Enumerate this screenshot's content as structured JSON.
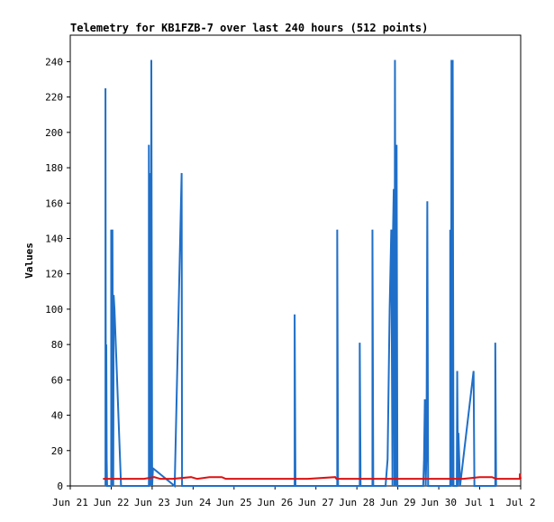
{
  "chart_data": {
    "type": "line",
    "title": "Telemetry for KB1FZB-7 over last 240 hours (512 points)",
    "xlabel": "",
    "ylabel": "Values",
    "ylim": [
      0,
      255
    ],
    "xlim": [
      0,
      11
    ],
    "x_ticks": [
      {
        "label": "Jun 21",
        "x": 0
      },
      {
        "label": "Jun 22",
        "x": 1
      },
      {
        "label": "Jun 23",
        "x": 2
      },
      {
        "label": "Jun 24",
        "x": 3
      },
      {
        "label": "Jun 25",
        "x": 4
      },
      {
        "label": "Jun 26",
        "x": 5
      },
      {
        "label": "Jun 27",
        "x": 6
      },
      {
        "label": "Jun 28",
        "x": 7
      },
      {
        "label": "Jun 29",
        "x": 8
      },
      {
        "label": "Jun 30",
        "x": 9
      },
      {
        "label": "Jul 1",
        "x": 10
      },
      {
        "label": "Jul 2",
        "x": 11
      }
    ],
    "y_ticks": [
      0,
      20,
      40,
      60,
      80,
      100,
      120,
      140,
      160,
      180,
      200,
      220,
      240
    ],
    "grid": false,
    "legend": "none",
    "series": [
      {
        "color": "#1f6fc8",
        "points": [
          [
            0.86,
            0
          ],
          [
            0.86,
            225
          ],
          [
            0.87,
            0
          ],
          [
            0.88,
            80
          ],
          [
            0.89,
            15
          ],
          [
            0.9,
            0
          ],
          [
            1.0,
            0
          ],
          [
            1.0,
            145
          ],
          [
            1.02,
            0
          ],
          [
            1.03,
            145
          ],
          [
            1.05,
            0
          ],
          [
            1.06,
            108
          ],
          [
            1.08,
            100
          ],
          [
            1.24,
            0
          ],
          [
            1.92,
            0
          ],
          [
            1.92,
            193
          ],
          [
            1.94,
            0
          ],
          [
            1.95,
            177
          ],
          [
            1.97,
            0
          ],
          [
            1.98,
            241
          ],
          [
            2.0,
            0
          ],
          [
            2.02,
            10
          ],
          [
            2.55,
            0
          ],
          [
            2.72,
            177
          ],
          [
            2.73,
            0
          ],
          [
            5.48,
            0
          ],
          [
            5.48,
            97
          ],
          [
            5.5,
            0
          ],
          [
            6.52,
            0
          ],
          [
            6.52,
            145
          ],
          [
            6.54,
            0
          ],
          [
            7.07,
            0
          ],
          [
            7.07,
            81
          ],
          [
            7.09,
            0
          ],
          [
            7.38,
            0
          ],
          [
            7.38,
            145
          ],
          [
            7.4,
            0
          ],
          [
            7.5,
            0
          ],
          [
            7.7,
            0
          ],
          [
            7.75,
            15
          ],
          [
            7.8,
            100
          ],
          [
            7.84,
            145
          ],
          [
            7.87,
            0
          ],
          [
            7.88,
            140
          ],
          [
            7.9,
            168
          ],
          [
            7.92,
            0
          ],
          [
            7.93,
            241
          ],
          [
            7.95,
            0
          ],
          [
            7.97,
            193
          ],
          [
            7.99,
            0
          ],
          [
            8.62,
            0
          ],
          [
            8.64,
            15
          ],
          [
            8.66,
            49
          ],
          [
            8.68,
            0
          ],
          [
            8.7,
            20
          ],
          [
            8.72,
            161
          ],
          [
            8.74,
            0
          ],
          [
            9.28,
            0
          ],
          [
            9.28,
            145
          ],
          [
            9.3,
            0
          ],
          [
            9.31,
            241
          ],
          [
            9.33,
            0
          ],
          [
            9.34,
            241
          ],
          [
            9.36,
            0
          ],
          [
            9.44,
            0
          ],
          [
            9.45,
            65
          ],
          [
            9.47,
            0
          ],
          [
            9.48,
            30
          ],
          [
            9.52,
            0
          ],
          [
            9.85,
            65
          ],
          [
            9.87,
            0
          ],
          [
            10.38,
            0
          ],
          [
            10.38,
            81
          ],
          [
            10.4,
            0
          ]
        ]
      },
      {
        "color": "#dd1111",
        "points": [
          [
            0.8,
            4
          ],
          [
            1.2,
            4
          ],
          [
            1.8,
            4
          ],
          [
            2.05,
            5
          ],
          [
            2.2,
            4
          ],
          [
            2.5,
            4
          ],
          [
            2.95,
            5
          ],
          [
            3.1,
            4
          ],
          [
            3.4,
            5
          ],
          [
            3.7,
            5
          ],
          [
            3.8,
            4
          ],
          [
            4.3,
            4
          ],
          [
            5.0,
            4
          ],
          [
            5.8,
            4
          ],
          [
            6.47,
            5
          ],
          [
            6.5,
            4
          ],
          [
            7.0,
            4
          ],
          [
            7.5,
            4
          ],
          [
            8.0,
            4
          ],
          [
            8.5,
            4
          ],
          [
            9.0,
            4
          ],
          [
            9.6,
            4
          ],
          [
            10.0,
            5
          ],
          [
            10.3,
            5
          ],
          [
            10.4,
            4
          ],
          [
            10.8,
            4
          ],
          [
            10.98,
            4
          ],
          [
            10.98,
            7
          ],
          [
            11.0,
            4
          ]
        ]
      }
    ]
  }
}
